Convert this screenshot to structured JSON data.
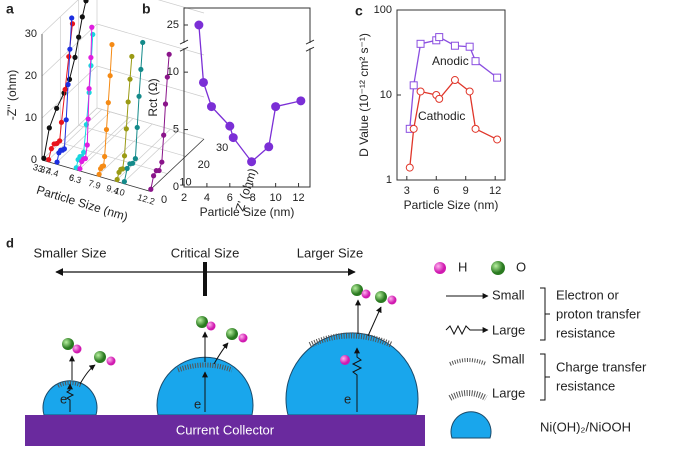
{
  "chart_data": [
    {
      "type": "line3d",
      "label": "a",
      "ylabel": "-Z'' (ohm)",
      "xlabel": "Z' (ohm)",
      "zlabel": "Particle Size (nm)",
      "ylim": [
        0,
        30
      ],
      "yticks": [
        0,
        10,
        20,
        30
      ],
      "xlim": [
        0,
        30
      ],
      "xticks": [
        0,
        10,
        20,
        30
      ],
      "zlim": [
        3.3,
        12.2
      ],
      "zticks": [
        3.3,
        3.7,
        4.4,
        6,
        6.3,
        7.9,
        9.4,
        10,
        12.2
      ],
      "grid": true,
      "series": [
        {
          "color": "#111111",
          "x": [
            1,
            4,
            8,
            12,
            15,
            18,
            20,
            22,
            24
          ],
          "values": [
            0,
            6,
            9,
            11,
            13,
            17,
            21,
            25,
            28
          ]
        },
        {
          "color": "#e8141c",
          "x": [
            1,
            2.5,
            4,
            5.5,
            7,
            8,
            10,
            12,
            14
          ],
          "values": [
            0,
            2,
            2.5,
            2,
            2,
            6,
            13,
            20,
            27
          ]
        },
        {
          "color": "#1c2fe0",
          "x": [
            1,
            2,
            3,
            4,
            5,
            6,
            7,
            8,
            9
          ],
          "values": [
            0,
            1.8,
            2,
            1.6,
            1.5,
            8,
            16,
            24,
            31
          ]
        },
        {
          "color": "#19d6e0",
          "x": [
            1,
            2,
            3,
            4,
            5,
            6.5,
            8,
            9,
            10
          ],
          "values": [
            0,
            1.5,
            1.8,
            1.4,
            2,
            8,
            15,
            21,
            28
          ]
        },
        {
          "color": "#e01ee0",
          "x": [
            1,
            2,
            3,
            4,
            5,
            5.5,
            6,
            7,
            7.5
          ],
          "values": [
            0,
            1.3,
            1.5,
            1.2,
            4,
            10,
            17,
            24,
            31
          ]
        },
        {
          "color": "#f58a14",
          "x": [
            1,
            1.8,
            2.6,
            3.4,
            4,
            5,
            6,
            7,
            8
          ],
          "values": [
            0,
            1,
            1.2,
            1,
            3,
            9,
            15,
            21,
            28
          ]
        },
        {
          "color": "#9a9a14",
          "x": [
            1,
            2,
            3,
            4,
            5,
            6,
            7,
            8,
            9
          ],
          "values": [
            0,
            1.3,
            1.6,
            1.3,
            4,
            10,
            16,
            21,
            26
          ]
        },
        {
          "color": "#148a8a",
          "x": [
            1,
            2.5,
            4,
            5.5,
            7,
            8,
            9,
            10,
            11
          ],
          "values": [
            0,
            2.5,
            3,
            2.5,
            3,
            10,
            17,
            23,
            29
          ]
        },
        {
          "color": "#8a148a",
          "x": [
            1,
            2.5,
            4,
            5.5,
            7,
            8,
            9,
            10,
            11
          ],
          "values": [
            0,
            2.6,
            3.2,
            2.6,
            4,
            10,
            17,
            23,
            28
          ]
        }
      ]
    },
    {
      "type": "line",
      "label": "b",
      "xlabel": "Particle Size (nm)",
      "ylabel": "Rct (Ω)",
      "x": [
        3.3,
        3.7,
        4.4,
        6,
        6.3,
        7.9,
        9.4,
        10,
        12.2
      ],
      "values": [
        25,
        9.1,
        7,
        5.3,
        4.3,
        2.2,
        3.5,
        7,
        7.5
      ],
      "color": "#7b2fd6",
      "marker": "filled-circle",
      "xlim": [
        2,
        13
      ],
      "xticks": [
        2,
        4,
        6,
        8,
        10,
        12
      ],
      "ylim": [
        0,
        26.5
      ],
      "yticks": [
        0,
        5,
        10,
        25
      ],
      "axis_break": [
        12,
        23.5
      ]
    },
    {
      "type": "line",
      "label": "c",
      "xlabel": "Particle Size (nm)",
      "ylabel": "D Value (10⁻¹² cm² s⁻¹)",
      "log_y": true,
      "x": [
        3.3,
        3.7,
        4.4,
        6,
        6.3,
        7.9,
        9.4,
        10,
        12.2
      ],
      "xlim": [
        2,
        13
      ],
      "xticks": [
        3,
        6,
        9,
        12
      ],
      "ylim": [
        1,
        100
      ],
      "yticks": [
        1,
        10,
        100
      ],
      "series": [
        {
          "name": "Anodic",
          "color": "#8a4ee0",
          "marker": "open-square",
          "values": [
            4,
            13,
            40,
            44,
            48,
            38,
            37,
            25,
            16
          ]
        },
        {
          "name": "Cathodic",
          "color": "#e0362a",
          "marker": "open-circle",
          "values": [
            1.4,
            4,
            11,
            10,
            9,
            15,
            11,
            4,
            3
          ]
        }
      ]
    }
  ],
  "diagram": {
    "label": "d",
    "sizes": [
      "Smaller Size",
      "Critical Size",
      "Larger Size"
    ],
    "collector": "Current Collector",
    "electron": "e",
    "legend": {
      "h": "H",
      "o": "O",
      "transfer": {
        "small": "Small",
        "large": "Large",
        "text": [
          "Electron or",
          "proton transfer",
          "resistance"
        ]
      },
      "charge": {
        "small": "Small",
        "large": "Large",
        "text": [
          "Charge transfer",
          "resistance"
        ]
      },
      "material": "Ni(OH)₂/NiOOH"
    }
  }
}
